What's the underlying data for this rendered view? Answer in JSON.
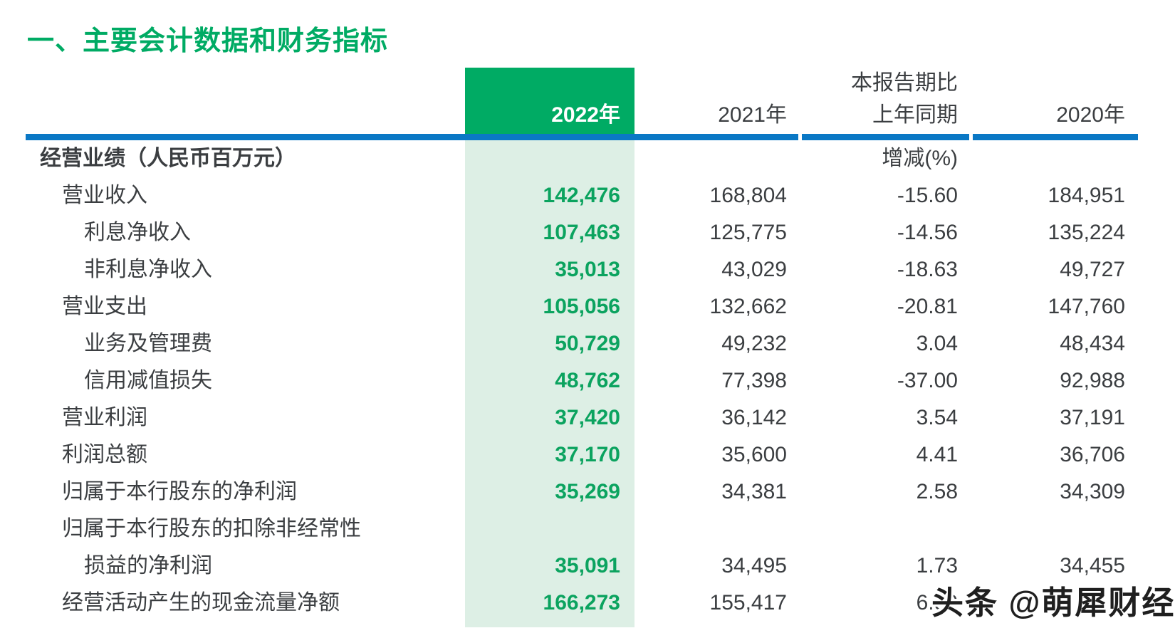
{
  "title": "一、主要会计数据和财务指标",
  "colors": {
    "accent_green": "#00ab64",
    "number_green": "#0ba35f",
    "light_green_column": "#ddefe5",
    "divider_blue": "#0a78c5",
    "text_dark": "#3b3e41",
    "watermark_text": "#1f1f1f"
  },
  "header": {
    "col_2022": "2022年",
    "col_2021": "2021年",
    "col_change_line1": "本报告期比",
    "col_change_line2": "上年同期",
    "col_2020": "2020年"
  },
  "table": {
    "rows": [
      {
        "label": "经营业绩（人民币百万元）",
        "indent": 0,
        "bold": true,
        "section": true,
        "v2022": "",
        "v2021": "",
        "change": "增减(%)",
        "v2020": ""
      },
      {
        "label": "营业收入",
        "indent": 1,
        "v2022": "142,476",
        "v2021": "168,804",
        "change": "-15.60",
        "v2020": "184,951"
      },
      {
        "label": "利息净收入",
        "indent": 2,
        "v2022": "107,463",
        "v2021": "125,775",
        "change": "-14.56",
        "v2020": "135,224"
      },
      {
        "label": "非利息净收入",
        "indent": 2,
        "v2022": "35,013",
        "v2021": "43,029",
        "change": "-18.63",
        "v2020": "49,727"
      },
      {
        "label": "营业支出",
        "indent": 1,
        "v2022": "105,056",
        "v2021": "132,662",
        "change": "-20.81",
        "v2020": "147,760"
      },
      {
        "label": "业务及管理费",
        "indent": 2,
        "v2022": "50,729",
        "v2021": "49,232",
        "change": "3.04",
        "v2020": "48,434"
      },
      {
        "label": "信用减值损失",
        "indent": 2,
        "v2022": "48,762",
        "v2021": "77,398",
        "change": "-37.00",
        "v2020": "92,988"
      },
      {
        "label": "营业利润",
        "indent": 1,
        "v2022": "37,420",
        "v2021": "36,142",
        "change": "3.54",
        "v2020": "37,191"
      },
      {
        "label": "利润总额",
        "indent": 1,
        "v2022": "37,170",
        "v2021": "35,600",
        "change": "4.41",
        "v2020": "36,706"
      },
      {
        "label": "归属于本行股东的净利润",
        "indent": 1,
        "v2022": "35,269",
        "v2021": "34,381",
        "change": "2.58",
        "v2020": "34,309"
      },
      {
        "label": "归属于本行股东的扣除非经常性",
        "indent": 1,
        "v2022": "",
        "v2021": "",
        "change": "",
        "v2020": ""
      },
      {
        "label": "损益的净利润",
        "indent": 2,
        "v2022": "35,091",
        "v2021": "34,495",
        "change": "1.73",
        "v2020": "34,455"
      },
      {
        "label": "经营活动产生的现金流量净额",
        "indent": 1,
        "v2022": "166,273",
        "v2021": "155,417",
        "change": "6.99",
        "v2020": ""
      }
    ]
  },
  "watermark": "头条 @萌犀财经"
}
